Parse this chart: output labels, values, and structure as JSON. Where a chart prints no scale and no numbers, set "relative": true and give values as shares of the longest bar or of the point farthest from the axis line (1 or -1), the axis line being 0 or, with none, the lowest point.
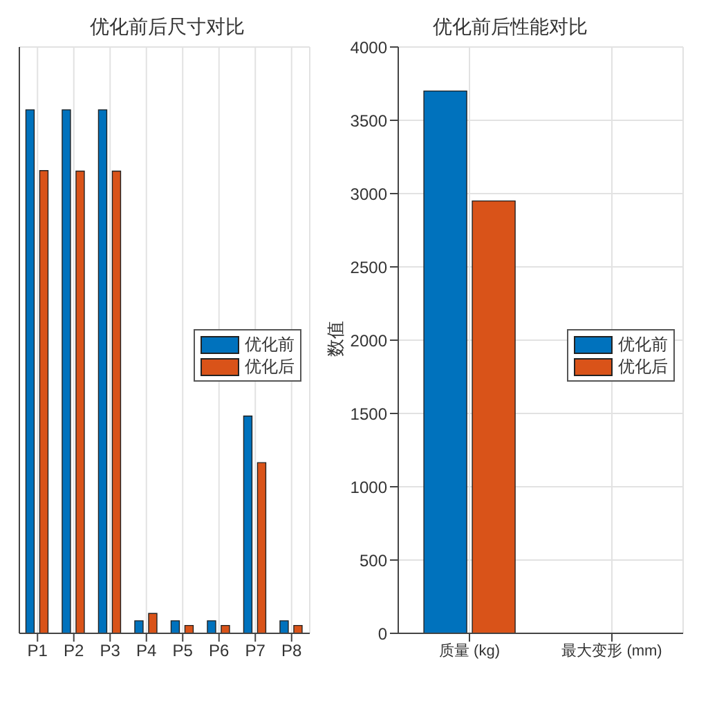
{
  "chart_data": [
    {
      "type": "bar",
      "title": "优化前后尺寸对比",
      "categories": [
        "P1",
        "P2",
        "P3",
        "P4",
        "P5",
        "P6",
        "P7",
        "P8"
      ],
      "relative": true,
      "grid": true,
      "legend": "right",
      "series": [
        {
          "name": "优化前",
          "color": "#0072bd",
          "values": [
            1,
            1,
            1,
            0.024,
            0.024,
            0.024,
            0.415,
            0.024
          ]
        },
        {
          "name": "优化后",
          "color": "#d95319",
          "values": [
            0.884,
            0.883,
            0.883,
            0.038,
            0.015,
            0.015,
            0.326,
            0.015
          ]
        }
      ]
    },
    {
      "type": "bar",
      "title": "优化前后性能对比",
      "categories": [
        "质量 (kg)",
        "最大变形 (mm)"
      ],
      "ylabel": "数值",
      "ylim": [
        0,
        4000
      ],
      "yticks": [
        0,
        500,
        1000,
        1500,
        2000,
        2500,
        3000,
        3500,
        4000
      ],
      "grid": true,
      "legend": "right",
      "series": [
        {
          "name": "优化前",
          "color": "#0072bd",
          "values": [
            3700,
            0
          ]
        },
        {
          "name": "优化后",
          "color": "#d95319",
          "values": [
            2950,
            0
          ]
        }
      ]
    }
  ]
}
